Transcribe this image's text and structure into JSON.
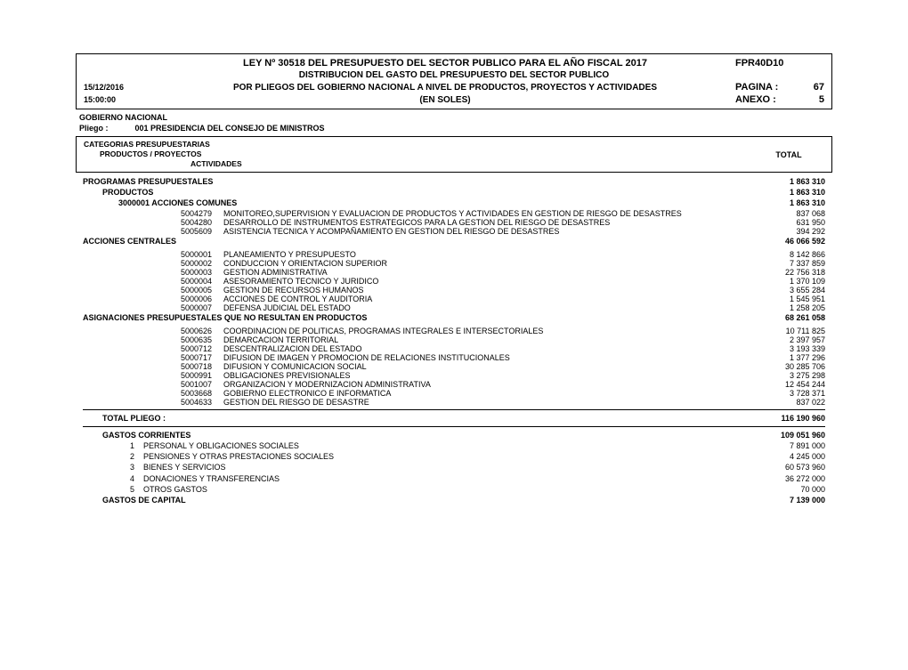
{
  "header": {
    "title": "LEY Nº 30518 DEL PRESUPUESTO DEL SECTOR PUBLICO PARA EL AÑO FISCAL 2017",
    "code": "FPR40D10",
    "sub1": "DISTRIBUCION DEL GASTO DEL PRESUPUESTO DEL SECTOR PUBLICO",
    "date": "15/12/2016",
    "sub2": "POR PLIEGOS DEL GOBIERNO NACIONAL A NIVEL DE PRODUCTOS, PROYECTOS Y ACTIVIDADES",
    "pagina_lbl": "PAGINA :",
    "pagina_num": "67",
    "time": "15:00:00",
    "sub3": "(EN SOLES)",
    "anexo_lbl": "ANEXO  :",
    "anexo_num": "5"
  },
  "gov": "GOBIERNO NACIONAL",
  "pliego": {
    "lbl": "Pliego :",
    "val": "001  PRESIDENCIA DEL CONSEJO DE MINISTROS"
  },
  "cat": {
    "l1": "CATEGORIAS PRESUPUESTARIAS",
    "l2": "PRODUCTOS / PROYECTOS",
    "l3": "ACTIVIDADES",
    "total": "TOTAL"
  },
  "s1": {
    "txt": "PROGRAMAS PRESUPUESTALES",
    "amt": "1 863 310"
  },
  "s2": {
    "txt": "PRODUCTOS",
    "amt": "1 863 310"
  },
  "s3": {
    "txt": "3000001  ACCIONES COMUNES",
    "amt": "1 863 310"
  },
  "a1": [
    {
      "code": "5004279",
      "desc": "MONITOREO,SUPERVISION Y EVALUACION DE PRODUCTOS Y ACTIVIDADES EN GESTION DE RIESGO DE DESASTRES",
      "amt": " 837 068"
    },
    {
      "code": "5004280",
      "desc": "DESARROLLO DE INSTRUMENTOS ESTRATEGICOS PARA LA GESTION DEL RIESGO DE DESASTRES",
      "amt": " 631 950"
    },
    {
      "code": "5005609",
      "desc": "ASISTENCIA TECNICA Y ACOMPAÑAMIENTO EN GESTION DEL RIESGO DE DESASTRES",
      "amt": " 394 292"
    }
  ],
  "s4": {
    "txt": "ACCIONES CENTRALES",
    "amt": "46 066 592"
  },
  "a2": [
    {
      "code": "5000001",
      "desc": "PLANEAMIENTO Y PRESUPUESTO",
      "amt": "8 142 866"
    },
    {
      "code": "5000002",
      "desc": "CONDUCCION Y ORIENTACION SUPERIOR",
      "amt": "7 337 859"
    },
    {
      "code": "5000003",
      "desc": "GESTION ADMINISTRATIVA",
      "amt": "22 756 318"
    },
    {
      "code": "5000004",
      "desc": "ASESORAMIENTO TECNICO Y JURIDICO",
      "amt": "1 370 109"
    },
    {
      "code": "5000005",
      "desc": "GESTION DE RECURSOS HUMANOS",
      "amt": "3 655 284"
    },
    {
      "code": "5000006",
      "desc": "ACCIONES DE CONTROL Y AUDITORIA",
      "amt": "1 545 951"
    },
    {
      "code": "5000007",
      "desc": "DEFENSA JUDICIAL DEL ESTADO",
      "amt": "1 258 205"
    }
  ],
  "s5": {
    "txt": "ASIGNACIONES PRESUPUESTALES QUE NO RESULTAN EN PRODUCTOS",
    "amt": "68 261 058"
  },
  "a3": [
    {
      "code": "5000626",
      "desc": "COORDINACION DE POLITICAS, PROGRAMAS INTEGRALES E INTERSECTORIALES",
      "amt": "10 711 825"
    },
    {
      "code": "5000635",
      "desc": "DEMARCACION TERRITORIAL",
      "amt": "2 397 957"
    },
    {
      "code": "5000712",
      "desc": "DESCENTRALIZACION DEL ESTADO",
      "amt": "3 193 339"
    },
    {
      "code": "5000717",
      "desc": "DIFUSION DE IMAGEN Y PROMOCION DE RELACIONES INSTITUCIONALES",
      "amt": "1 377 296"
    },
    {
      "code": "5000718",
      "desc": "DIFUSION Y COMUNICACION SOCIAL",
      "amt": "30 285 706"
    },
    {
      "code": "5000991",
      "desc": "OBLIGACIONES PREVISIONALES",
      "amt": "3 275 298"
    },
    {
      "code": "5001007",
      "desc": "ORGANIZACION Y MODERNIZACION ADMINISTRATIVA",
      "amt": "12 454 244"
    },
    {
      "code": "5003668",
      "desc": "GOBIERNO ELECTRONICO E INFORMATICA",
      "amt": "3 728 371"
    },
    {
      "code": "5004633",
      "desc": "GESTION DEL RIESGO DE DESASTRE",
      "amt": " 837 022"
    }
  ],
  "total_pliego": {
    "txt": "TOTAL PLIEGO    :",
    "amt": "116 190 960"
  },
  "gc": {
    "txt": "GASTOS CORRIENTES",
    "amt": "109 051 960"
  },
  "gc_items": [
    {
      "num": "1",
      "desc": "PERSONAL Y OBLIGACIONES SOCIALES",
      "amt": "7 891 000"
    },
    {
      "num": "2",
      "desc": "PENSIONES Y OTRAS PRESTACIONES SOCIALES",
      "amt": "4 245 000"
    },
    {
      "num": "3",
      "desc": "BIENES Y SERVICIOS",
      "amt": "60 573 960"
    },
    {
      "num": "4",
      "desc": "DONACIONES Y TRANSFERENCIAS",
      "amt": "36 272 000"
    },
    {
      "num": "5",
      "desc": "OTROS GASTOS",
      "amt": " 70 000"
    }
  ],
  "gk": {
    "txt": "GASTOS DE CAPITAL",
    "amt": "7 139 000"
  }
}
